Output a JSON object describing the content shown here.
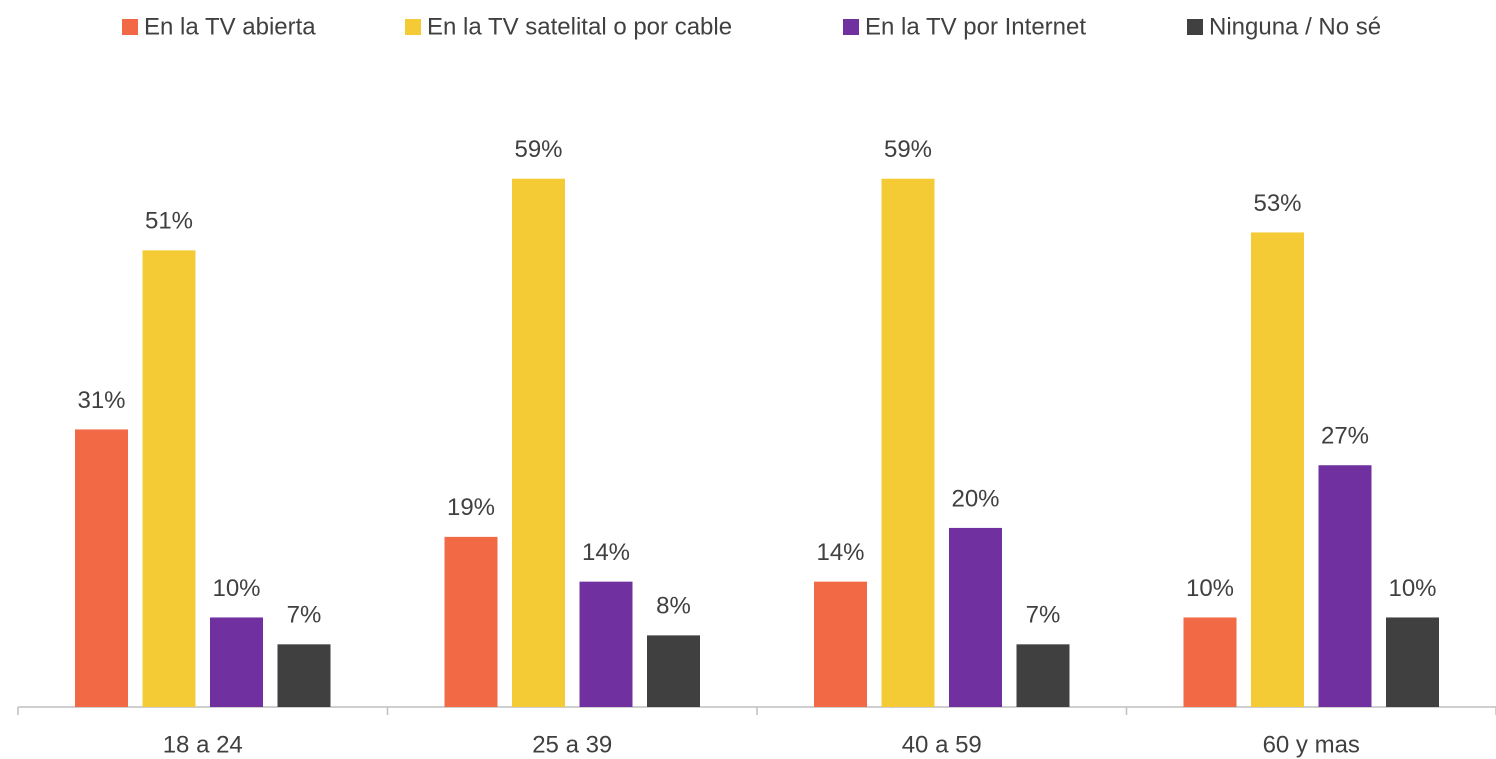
{
  "chart_data": {
    "type": "bar",
    "categories": [
      "18 a 24",
      "25 a 39",
      "40 a 59",
      "60 y mas"
    ],
    "series": [
      {
        "name": "En la TV abierta",
        "color": "#f26946",
        "values": [
          31,
          19,
          14,
          10
        ],
        "value_labels": [
          "31%",
          "19%",
          "14%",
          "10%"
        ]
      },
      {
        "name": "En la TV satelital o por cable",
        "color": "#f4cb35",
        "values": [
          51,
          59,
          59,
          53
        ],
        "value_labels": [
          "51%",
          "59%",
          "59%",
          "53%"
        ]
      },
      {
        "name": "En la TV por Internet",
        "color": "#7030a0",
        "values": [
          10,
          14,
          20,
          27
        ],
        "value_labels": [
          "10%",
          "14%",
          "20%",
          "27%"
        ]
      },
      {
        "name": "Ninguna / No sé",
        "color": "#404040",
        "values": [
          7,
          8,
          7,
          10
        ],
        "value_labels": [
          "7%",
          "8%",
          "7%",
          "10%"
        ]
      }
    ],
    "ylim": [
      0,
      65
    ],
    "legend": "top"
  }
}
